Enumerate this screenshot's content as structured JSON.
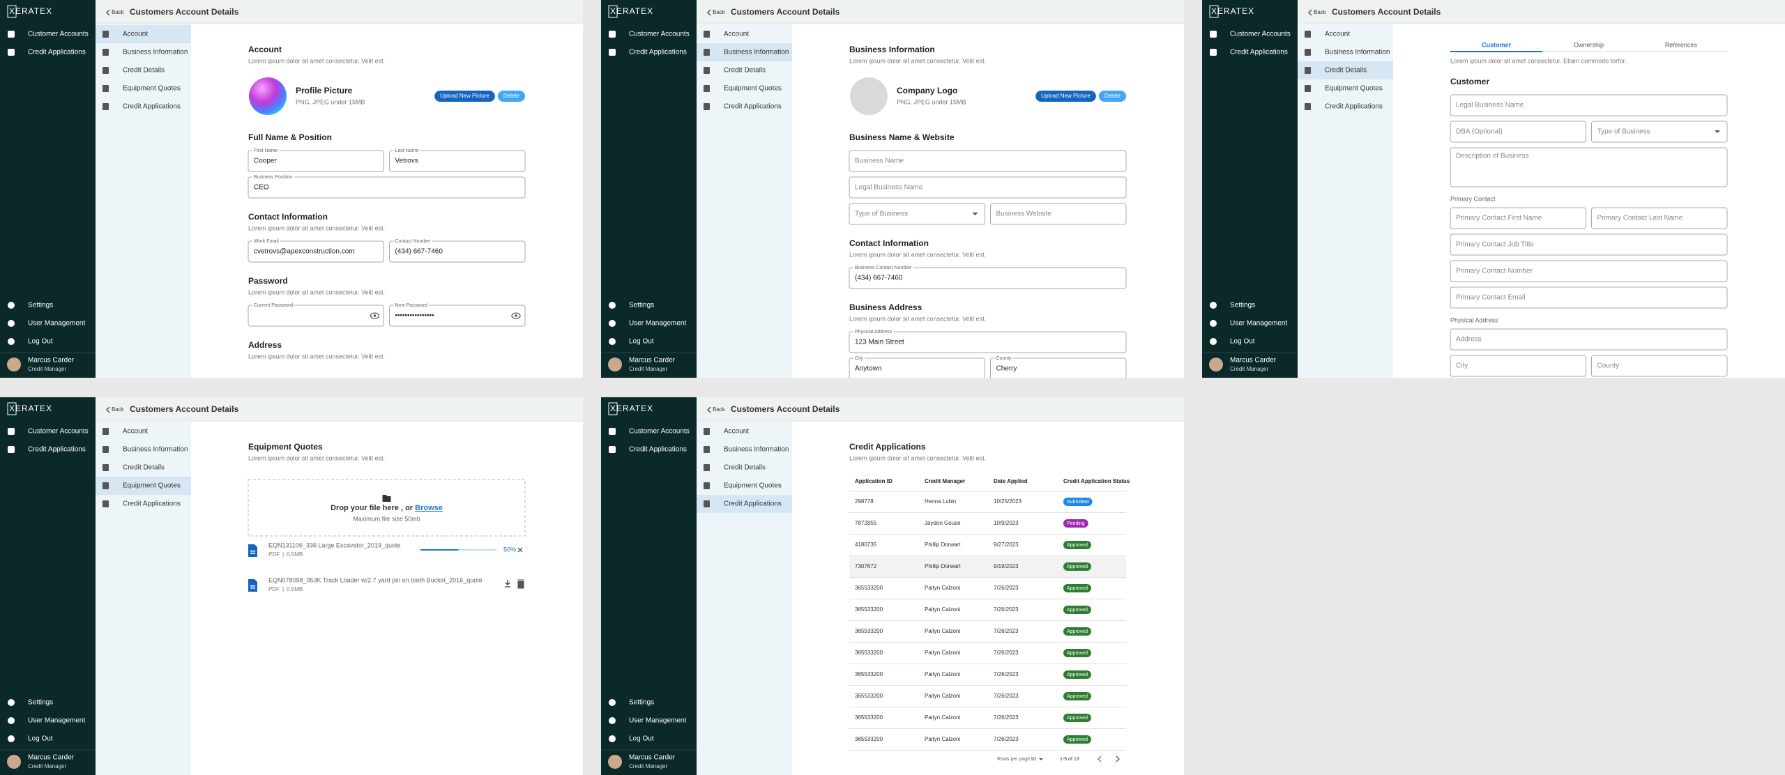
{
  "brand": "XERATEX",
  "nav": {
    "main": [
      "Customer Accounts",
      "Credit Applications"
    ],
    "bottom": [
      "Settings",
      "User Management",
      "Log Out"
    ],
    "user_name": "Marcus Carder",
    "user_role": "Credit Manager"
  },
  "header": {
    "back": "Back",
    "title": "Customers Account Details"
  },
  "sub_nav": [
    "Account",
    "Business Information",
    "Credit Details",
    "Equipment Quotes",
    "Credit Applications"
  ],
  "status_colors": {
    "Submitted": "#1e88e5",
    "Pending": "#9c27b0",
    "Approved": "#2e7d32"
  },
  "panels": [
    {
      "active": 0,
      "blocks": [
        {
          "kind": "section",
          "title": "Account",
          "desc": "Lorem ipsum dolor sit amet consectetur. Velit est."
        },
        {
          "kind": "avatar",
          "photo": true,
          "title": "Profile Picture",
          "hint": "PNG, JPEG under 15MB",
          "buttons": [
            "Upload New Picture",
            "Delete"
          ]
        },
        {
          "kind": "section",
          "title": "Full Name & Position"
        },
        {
          "kind": "row",
          "fields": [
            {
              "label": "First Name",
              "value": "Cooper"
            },
            {
              "label": "Last Name",
              "value": "Vetrovs"
            }
          ]
        },
        {
          "kind": "row",
          "fields": [
            {
              "label": "Business Position",
              "value": "CEO"
            }
          ]
        },
        {
          "kind": "section",
          "title": "Contact Information",
          "desc": "Lorem ipsum dolor sit amet consectetur. Velit est."
        },
        {
          "kind": "row",
          "fields": [
            {
              "label": "Work Email",
              "value": "cvetrovs@apexconstruction.com"
            },
            {
              "label": "Contact Number",
              "value": "(434) 667-7460"
            }
          ]
        },
        {
          "kind": "section",
          "title": "Password",
          "desc": "Lorem ipsum dolor sit amet consectetur. Velit est."
        },
        {
          "kind": "row",
          "fields": [
            {
              "label": "Current Password",
              "type": "password"
            },
            {
              "label": "New Password",
              "value": "••••••••••••••••",
              "type": "password"
            }
          ]
        },
        {
          "kind": "section",
          "title": "Address",
          "desc": "Lorem ipsum dolor sit amet consectetur. Velit est."
        }
      ]
    },
    {
      "active": 1,
      "blocks": [
        {
          "kind": "section",
          "title": "Business Information",
          "desc": "Lorem ipsum dolor sit amet consectetur. Velit est."
        },
        {
          "kind": "avatar",
          "photo": false,
          "title": "Company Logo",
          "hint": "PNG, JPEG under 15MB",
          "buttons": [
            "Upload New Picture",
            "Delete"
          ]
        },
        {
          "kind": "section",
          "title": "Business Name & Website"
        },
        {
          "kind": "row",
          "fields": [
            {
              "placeholder": "Business Name"
            }
          ]
        },
        {
          "kind": "row",
          "fields": [
            {
              "placeholder": "Legal Business Name"
            }
          ]
        },
        {
          "kind": "row",
          "fields": [
            {
              "placeholder": "Type of Business",
              "type": "select"
            },
            {
              "placeholder": "Business Website"
            }
          ]
        },
        {
          "kind": "section",
          "title": "Contact Information",
          "desc": "Lorem ipsum dolor sit amet consectetur. Velit est."
        },
        {
          "kind": "row",
          "fields": [
            {
              "label": "Business Contact Number",
              "value": "(434) 667-7460"
            }
          ]
        },
        {
          "kind": "section",
          "title": "Business Address",
          "desc": "Lorem ipsum dolor sit amet consectetur. Velit est."
        },
        {
          "kind": "row",
          "fields": [
            {
              "label": "Physical Address",
              "value": "123 Main Street"
            }
          ]
        },
        {
          "kind": "row",
          "fields": [
            {
              "label": "City",
              "value": "Anytown"
            },
            {
              "label": "County",
              "value": "Cherry"
            }
          ]
        }
      ]
    },
    {
      "active": 2,
      "blocks": [
        {
          "kind": "tabs",
          "tabs": [
            "Customer",
            "Ownership",
            "References"
          ],
          "active": 0
        },
        {
          "kind": "desc",
          "text": "Lorem ipsum dolor sit amet consectetur. Etiam commodo tortor."
        },
        {
          "kind": "section",
          "title": "Customer"
        },
        {
          "kind": "row",
          "fields": [
            {
              "placeholder": "Legal Business Name"
            }
          ]
        },
        {
          "kind": "row",
          "fields": [
            {
              "placeholder": "DBA (Optional)"
            },
            {
              "placeholder": "Type of Business",
              "type": "select"
            }
          ]
        },
        {
          "kind": "row",
          "fields": [
            {
              "placeholder": "Description of Business",
              "type": "textarea"
            }
          ]
        },
        {
          "kind": "label",
          "text": "Primary Contact"
        },
        {
          "kind": "row",
          "fields": [
            {
              "placeholder": "Primary Contact First Name"
            },
            {
              "placeholder": "Primary Contact Last Name"
            }
          ]
        },
        {
          "kind": "row",
          "fields": [
            {
              "placeholder": "Primary Contact Job Title"
            }
          ]
        },
        {
          "kind": "row",
          "fields": [
            {
              "placeholder": "Primary Contact Number"
            }
          ]
        },
        {
          "kind": "row",
          "fields": [
            {
              "placeholder": "Primary Contact Email"
            }
          ]
        },
        {
          "kind": "label",
          "text": "Physical Address"
        },
        {
          "kind": "row",
          "fields": [
            {
              "placeholder": "Address"
            }
          ]
        },
        {
          "kind": "row",
          "fields": [
            {
              "placeholder": "City"
            },
            {
              "placeholder": "County"
            }
          ]
        }
      ]
    },
    {
      "active": 3,
      "blocks": [
        {
          "kind": "section",
          "title": "Equipment Quotes",
          "desc": "Lorem ipsum dolor sit amet consectetur. Velit est."
        },
        {
          "kind": "dropzone",
          "text": "Drop your file here , or ",
          "link": "Browse",
          "hint": "Maximum file size 50mb"
        },
        {
          "kind": "file",
          "name": "EQN131106_336 Large Excavator_2019_quote",
          "meta": [
            "PDF",
            "|",
            "0.5MB"
          ],
          "progress": {
            "value": 50,
            "label": "50%"
          }
        },
        {
          "kind": "file",
          "name": "EQN078098_953K Track Loader w/2.7 yard pin on tooth Bucket_2016_quote",
          "meta": [
            "PDF",
            "|",
            "0.5MB"
          ]
        }
      ]
    },
    {
      "active": 4,
      "blocks": [
        {
          "kind": "section",
          "title": "Credit Applications",
          "desc": "Lorem ipsum dolor sit amet consectetur. Velit est."
        },
        {
          "kind": "table",
          "columns": [
            "Application ID",
            "Credit Manager",
            "Date Applied",
            "Credit Application Status"
          ],
          "highlight": 3,
          "rows": [
            [
              "298778",
              "Henna Lubin",
              "10/25/2023",
              "Submitted"
            ],
            [
              "7872855",
              "Jaydon Gouse",
              "10/9/2023",
              "Pending"
            ],
            [
              "4180735",
              "Phillip Dorwart",
              "9/27/2023",
              "Approved"
            ],
            [
              "7307672",
              "Phillip Dorwart",
              "9/19/2023",
              "Approved"
            ],
            [
              "365533200",
              "Paityn Calzoni",
              "7/26/2023",
              "Approved"
            ],
            [
              "365533200",
              "Paityn Calzoni",
              "7/26/2023",
              "Approved"
            ],
            [
              "365533200",
              "Paityn Calzoni",
              "7/26/2023",
              "Approved"
            ],
            [
              "365533200",
              "Paityn Calzoni",
              "7/26/2023",
              "Approved"
            ],
            [
              "365533200",
              "Paityn Calzoni",
              "7/26/2023",
              "Approved"
            ],
            [
              "365533200",
              "Paityn Calzoni",
              "7/26/2023",
              "Approved"
            ],
            [
              "365533200",
              "Paityn Calzoni",
              "7/26/2023",
              "Approved"
            ],
            [
              "365533200",
              "Paityn Calzoni",
              "7/26/2023",
              "Approved"
            ]
          ]
        },
        {
          "kind": "pagination",
          "rows_label": "Rows per page:",
          "rows_value": "10",
          "range": "1-5 of 13"
        }
      ]
    }
  ]
}
